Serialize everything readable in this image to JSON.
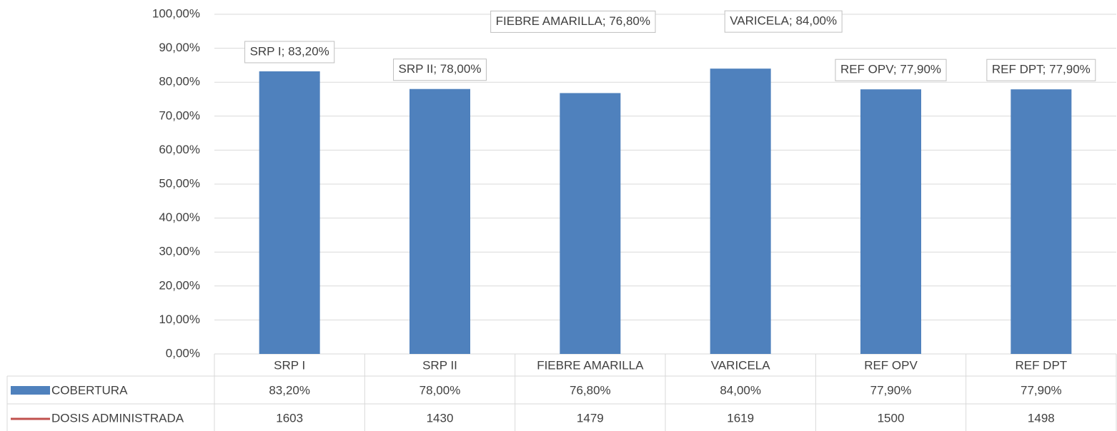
{
  "chart_data": {
    "type": "bar",
    "categories": [
      "SRP I",
      "SRP II",
      "FIEBRE AMARILLA",
      "VARICELA",
      "REF OPV",
      "REF DPT"
    ],
    "series": [
      {
        "name": "COBERTURA",
        "color": "#4f81bd",
        "values": [
          83.2,
          78.0,
          76.8,
          84.0,
          77.9,
          77.9
        ],
        "value_labels": [
          "SRP I; 83,20%",
          "SRP II; 78,00%",
          "FIEBRE AMARILLA; 76,80%",
          "VARICELA; 84,00%",
          "REF OPV; 77,90%",
          "REF DPT; 77,90%"
        ],
        "table_labels": [
          "83,20%",
          "78,00%",
          "76,80%",
          "84,00%",
          "77,90%",
          "77,90%"
        ]
      },
      {
        "name": "DOSIS ADMINISTRADA",
        "color": "#c0504d",
        "values": [
          1603,
          1430,
          1479,
          1619,
          1500,
          1498
        ]
      }
    ],
    "ylim": [
      0,
      100
    ],
    "yticks": [
      {
        "value": 0,
        "label": "0,00%"
      },
      {
        "value": 10,
        "label": "10,00%"
      },
      {
        "value": 20,
        "label": "20,00%"
      },
      {
        "value": 30,
        "label": "30,00%"
      },
      {
        "value": 40,
        "label": "40,00%"
      },
      {
        "value": 50,
        "label": "50,00%"
      },
      {
        "value": 60,
        "label": "60,00%"
      },
      {
        "value": 70,
        "label": "70,00%"
      },
      {
        "value": 80,
        "label": "80,00%"
      },
      {
        "value": 90,
        "label": "90,00%"
      },
      {
        "value": 100,
        "label": "100,00%"
      }
    ],
    "grid": true
  }
}
